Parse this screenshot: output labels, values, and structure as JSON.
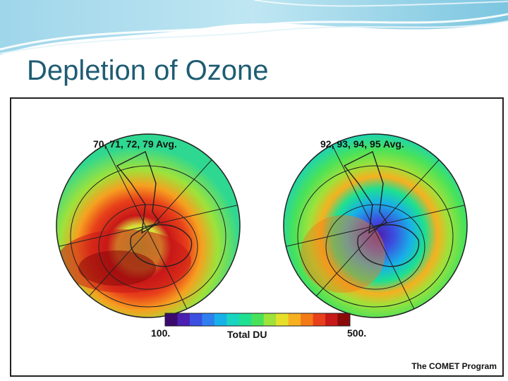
{
  "slide": {
    "title": "Depletion of Ozone"
  },
  "figure": {
    "left_globe_label": "70, 71, 72, 79 Avg.",
    "right_globe_label": "92, 93, 94, 95 Avg.",
    "scale_min_label": "100.",
    "scale_max_label": "500.",
    "scale_title": "Total DU",
    "scale_colors": [
      "#3a0a6e",
      "#4b1fb0",
      "#3b4fe0",
      "#2f7ff0",
      "#18b0e8",
      "#18d4c0",
      "#1ee090",
      "#48e25a",
      "#9ee23a",
      "#e6e02a",
      "#f6b020",
      "#f47a18",
      "#e8401a",
      "#c81818",
      "#8a0a0a"
    ],
    "credit": "The COMET Program"
  }
}
